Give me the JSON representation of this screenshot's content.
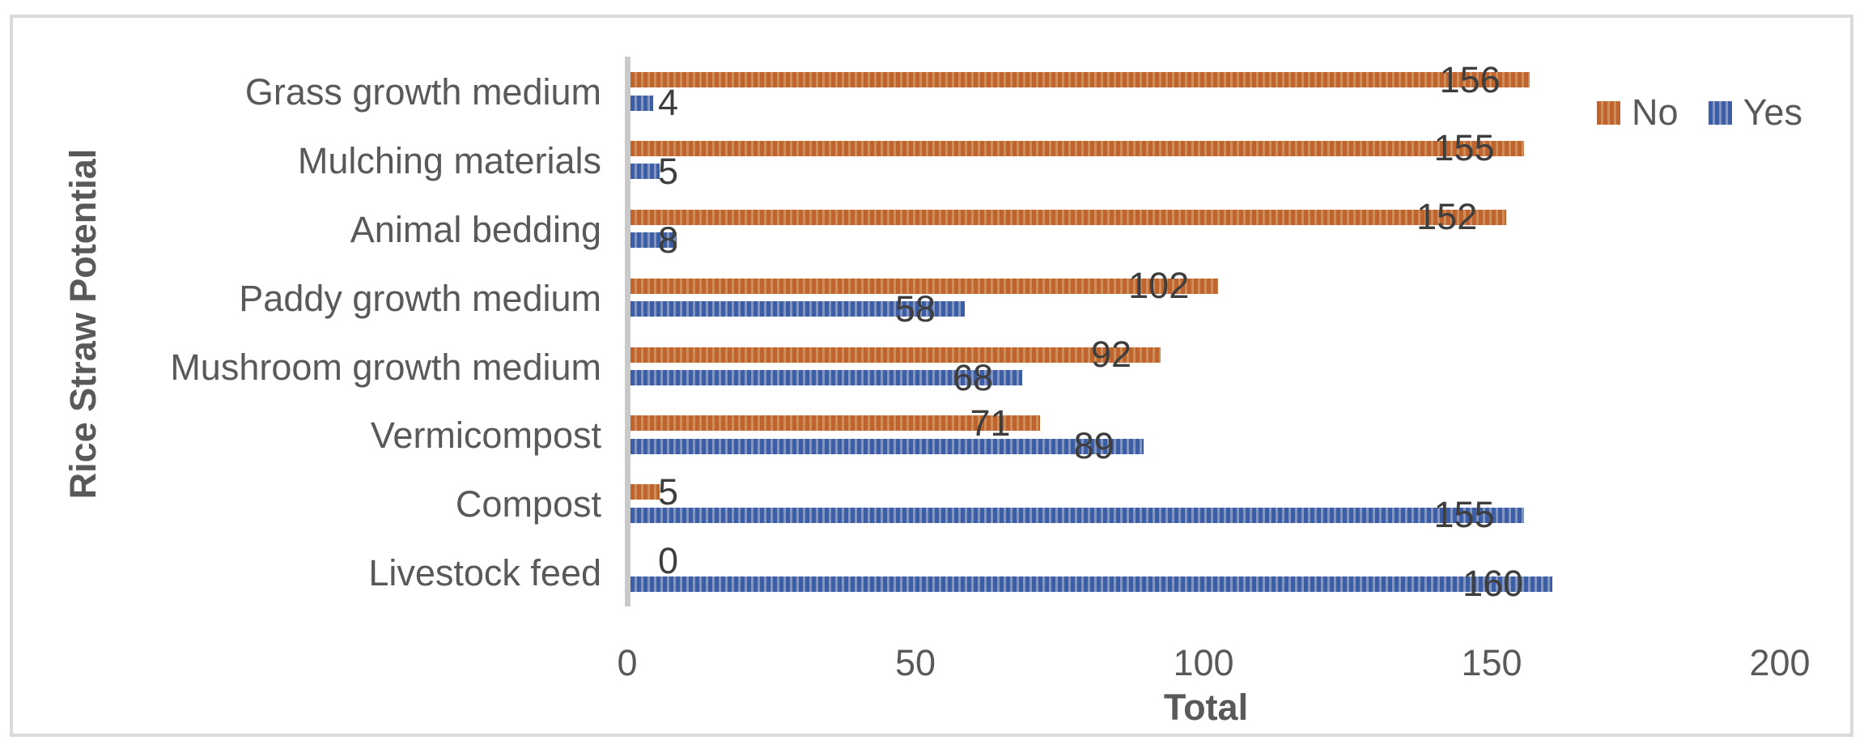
{
  "chart_data": {
    "type": "bar",
    "orientation": "horizontal",
    "xlabel": "Total",
    "ylabel": "Rice Straw Potential",
    "xlim": [
      0,
      200
    ],
    "x_ticks": [
      "0",
      "50",
      "100",
      "150",
      "200"
    ],
    "grid": false,
    "data_labels": true,
    "legend_position": "top-right",
    "categories": [
      "Grass growth medium",
      "Mulching materials",
      "Animal bedding",
      "Paddy growth medium",
      "Mushroom growth medium",
      "Vermicompost",
      "Compost",
      "Livestock feed"
    ],
    "series": [
      {
        "name": "No",
        "color": "#C0632C",
        "color_light": "#D18C57",
        "pattern": "vertical-stripes",
        "values": [
          156,
          155,
          152,
          102,
          92,
          71,
          5,
          0
        ]
      },
      {
        "name": "Yes",
        "color": "#3B5EA9",
        "color_light": "#8296C5",
        "pattern": "vertical-stripes",
        "values": [
          4,
          5,
          8,
          58,
          68,
          89,
          155,
          160
        ]
      }
    ]
  },
  "figure": {
    "border_color": "#DADADA",
    "axis_line_color": "#C9C9C9",
    "label_color": "#595959",
    "data_label_color": "#3E3E3E"
  }
}
